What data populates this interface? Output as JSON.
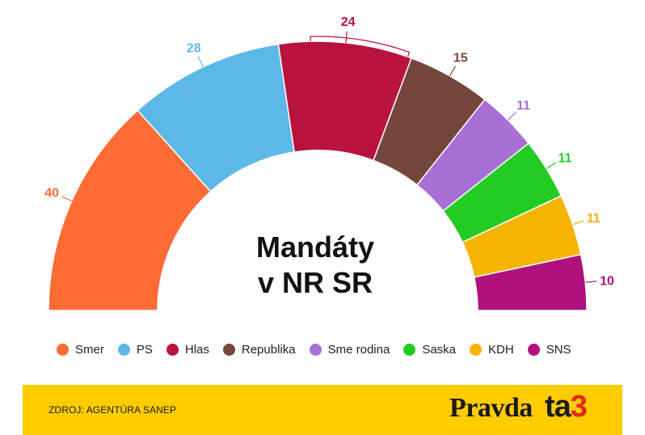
{
  "chart_data": {
    "type": "parliament-semicircle",
    "title_line1": "Mandáty",
    "title_line2": "v NR SR",
    "total_seats": 150,
    "majority_marker": "Hlas",
    "parties": [
      {
        "name": "Smer",
        "seats": 40,
        "color": "#ff6b35"
      },
      {
        "name": "PS",
        "seats": 28,
        "color": "#5cb8e6"
      },
      {
        "name": "Hlas",
        "seats": 24,
        "color": "#b8133e"
      },
      {
        "name": "Republika",
        "seats": 15,
        "color": "#74463c"
      },
      {
        "name": "Sme rodina",
        "seats": 11,
        "color": "#a86fd4"
      },
      {
        "name": "Saska",
        "seats": 11,
        "color": "#22cc22"
      },
      {
        "name": "KDH",
        "seats": 11,
        "color": "#f5b400"
      },
      {
        "name": "SNS",
        "seats": 10,
        "color": "#b0117c"
      }
    ]
  },
  "legend": [
    {
      "label": "Smer",
      "color": "#ff6b35"
    },
    {
      "label": "PS",
      "color": "#5cb8e6"
    },
    {
      "label": "Hlas",
      "color": "#b8133e"
    },
    {
      "label": "Republika",
      "color": "#74463c"
    },
    {
      "label": "Sme rodina",
      "color": "#a86fd4"
    },
    {
      "label": "Saska",
      "color": "#22cc22"
    },
    {
      "label": "KDH",
      "color": "#f5b400"
    },
    {
      "label": "SNS",
      "color": "#b0117c"
    }
  ],
  "footer": {
    "source": "ZDROJ: AGENTÚRA SANEP",
    "logo_pravda": "Pravda",
    "logo_ta": "ta",
    "logo_3": "3"
  }
}
